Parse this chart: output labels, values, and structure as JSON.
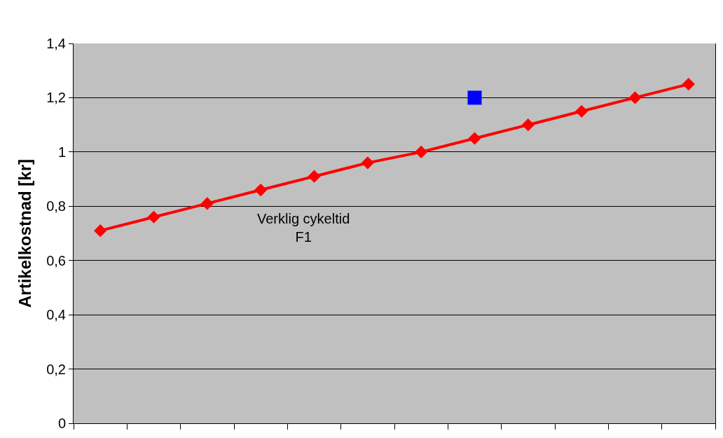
{
  "chart_data": {
    "type": "line",
    "ylabel": "Artikelkostnad [kr]",
    "categories": [
      null,
      null,
      null,
      null,
      null,
      null,
      null,
      null,
      null,
      null,
      null,
      null
    ],
    "series": [
      {
        "color": "#ff0000",
        "marker": "diamond",
        "values": [
          0.71,
          0.76,
          0.81,
          0.86,
          0.91,
          0.96,
          1.0,
          1.05,
          1.1,
          1.15,
          1.2,
          1.25
        ]
      },
      {
        "type": "scatter",
        "color": "#0000ff",
        "marker": "square",
        "values": [
          null,
          null,
          null,
          null,
          null,
          null,
          null,
          1.2,
          null,
          null,
          null,
          null
        ]
      }
    ],
    "annotations": [
      "Verklig cykeltid\nF1"
    ],
    "ylim": [
      0,
      1.4
    ],
    "yticks": [
      0,
      {
        "value": 0.2,
        "label": "0,2"
      },
      {
        "value": 0.4,
        "label": "0,4"
      },
      {
        "value": 0.6,
        "label": "0,6"
      },
      {
        "value": 0.8,
        "label": "0,8"
      },
      1,
      {
        "value": 1.2,
        "label": "1,2"
      },
      {
        "value": 1.4,
        "label": "1,4"
      }
    ],
    "grid": "y",
    "line_style": "solid"
  }
}
